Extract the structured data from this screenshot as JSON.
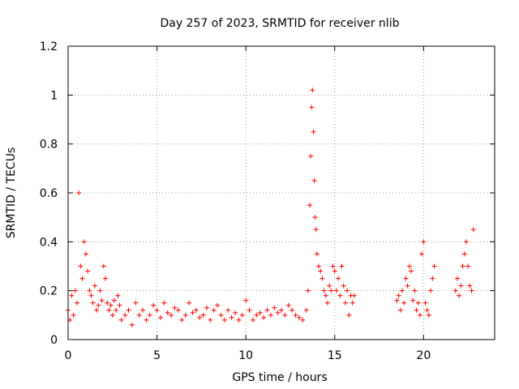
{
  "chart_data": {
    "type": "scatter",
    "title": "Day 257 of 2023, SRMTID for receiver nlib",
    "xlabel": "GPS time / hours",
    "ylabel": "SRMTID / TECUs",
    "xlim": [
      0,
      24
    ],
    "ylim": [
      0,
      1.2
    ],
    "x_ticks": [
      0,
      5,
      10,
      15,
      20
    ],
    "y_ticks": [
      0,
      0.2,
      0.4,
      0.6,
      0.8,
      1,
      1.2
    ],
    "x_tick_labels": [
      "0",
      "5",
      "10",
      "15",
      "20"
    ],
    "y_tick_labels": [
      "0",
      "0.2",
      "0.4",
      "0.6",
      "0.8",
      "1",
      "1.2"
    ],
    "grid": true,
    "marker": "+",
    "series": [
      {
        "name": "SRMTID",
        "color": "#ff0000",
        "x": [
          0.0,
          0.1,
          0.2,
          0.3,
          0.4,
          0.5,
          0.6,
          0.7,
          0.8,
          0.9,
          1.0,
          1.1,
          1.2,
          1.3,
          1.4,
          1.5,
          1.6,
          1.7,
          1.8,
          1.9,
          2.0,
          2.1,
          2.2,
          2.3,
          2.4,
          2.5,
          2.6,
          2.7,
          2.8,
          2.9,
          3.0,
          3.2,
          3.4,
          3.6,
          3.8,
          4.0,
          4.2,
          4.4,
          4.6,
          4.8,
          5.0,
          5.2,
          5.4,
          5.6,
          5.8,
          6.0,
          6.2,
          6.4,
          6.6,
          6.8,
          7.0,
          7.2,
          7.4,
          7.6,
          7.8,
          8.0,
          8.2,
          8.4,
          8.6,
          8.8,
          9.0,
          9.2,
          9.4,
          9.6,
          9.8,
          10.0,
          10.2,
          10.4,
          10.6,
          10.8,
          11.0,
          11.2,
          11.4,
          11.6,
          11.8,
          12.0,
          12.2,
          12.4,
          12.6,
          12.8,
          13.0,
          13.2,
          13.4,
          13.5,
          13.6,
          13.65,
          13.7,
          13.75,
          13.8,
          13.85,
          13.9,
          13.95,
          14.0,
          14.1,
          14.2,
          14.3,
          14.4,
          14.5,
          14.6,
          14.7,
          14.8,
          14.9,
          15.0,
          15.1,
          15.2,
          15.3,
          15.4,
          15.5,
          15.6,
          15.7,
          15.8,
          15.9,
          16.0,
          16.1,
          18.5,
          18.6,
          18.7,
          18.8,
          18.9,
          19.0,
          19.1,
          19.2,
          19.3,
          19.4,
          19.5,
          19.6,
          19.7,
          19.8,
          19.9,
          20.0,
          20.1,
          20.2,
          20.3,
          20.4,
          20.5,
          20.6,
          21.8,
          21.9,
          22.0,
          22.1,
          22.2,
          22.3,
          22.4,
          22.5,
          22.6,
          22.7,
          22.8
        ],
        "y": [
          0.12,
          0.08,
          0.18,
          0.1,
          0.2,
          0.15,
          0.6,
          0.3,
          0.25,
          0.4,
          0.35,
          0.28,
          0.2,
          0.18,
          0.15,
          0.22,
          0.12,
          0.14,
          0.2,
          0.16,
          0.3,
          0.25,
          0.15,
          0.12,
          0.14,
          0.1,
          0.16,
          0.12,
          0.18,
          0.14,
          0.08,
          0.1,
          0.12,
          0.06,
          0.15,
          0.1,
          0.12,
          0.08,
          0.1,
          0.14,
          0.12,
          0.09,
          0.15,
          0.11,
          0.1,
          0.13,
          0.12,
          0.08,
          0.1,
          0.15,
          0.11,
          0.12,
          0.09,
          0.1,
          0.13,
          0.08,
          0.12,
          0.14,
          0.1,
          0.08,
          0.12,
          0.09,
          0.11,
          0.08,
          0.1,
          0.16,
          0.12,
          0.08,
          0.1,
          0.11,
          0.09,
          0.12,
          0.1,
          0.13,
          0.11,
          0.12,
          0.1,
          0.14,
          0.12,
          0.1,
          0.09,
          0.08,
          0.12,
          0.2,
          0.55,
          0.75,
          0.95,
          1.02,
          0.85,
          0.65,
          0.5,
          0.45,
          0.35,
          0.3,
          0.28,
          0.25,
          0.2,
          0.18,
          0.15,
          0.22,
          0.2,
          0.3,
          0.28,
          0.2,
          0.25,
          0.18,
          0.3,
          0.22,
          0.15,
          0.2,
          0.1,
          0.18,
          0.15,
          0.18,
          0.16,
          0.18,
          0.12,
          0.2,
          0.15,
          0.25,
          0.22,
          0.3,
          0.28,
          0.16,
          0.2,
          0.12,
          0.15,
          0.1,
          0.35,
          0.4,
          0.15,
          0.12,
          0.1,
          0.2,
          0.25,
          0.3,
          0.2,
          0.25,
          0.18,
          0.22,
          0.3,
          0.35,
          0.4,
          0.3,
          0.22,
          0.2,
          0.45
        ]
      }
    ]
  }
}
